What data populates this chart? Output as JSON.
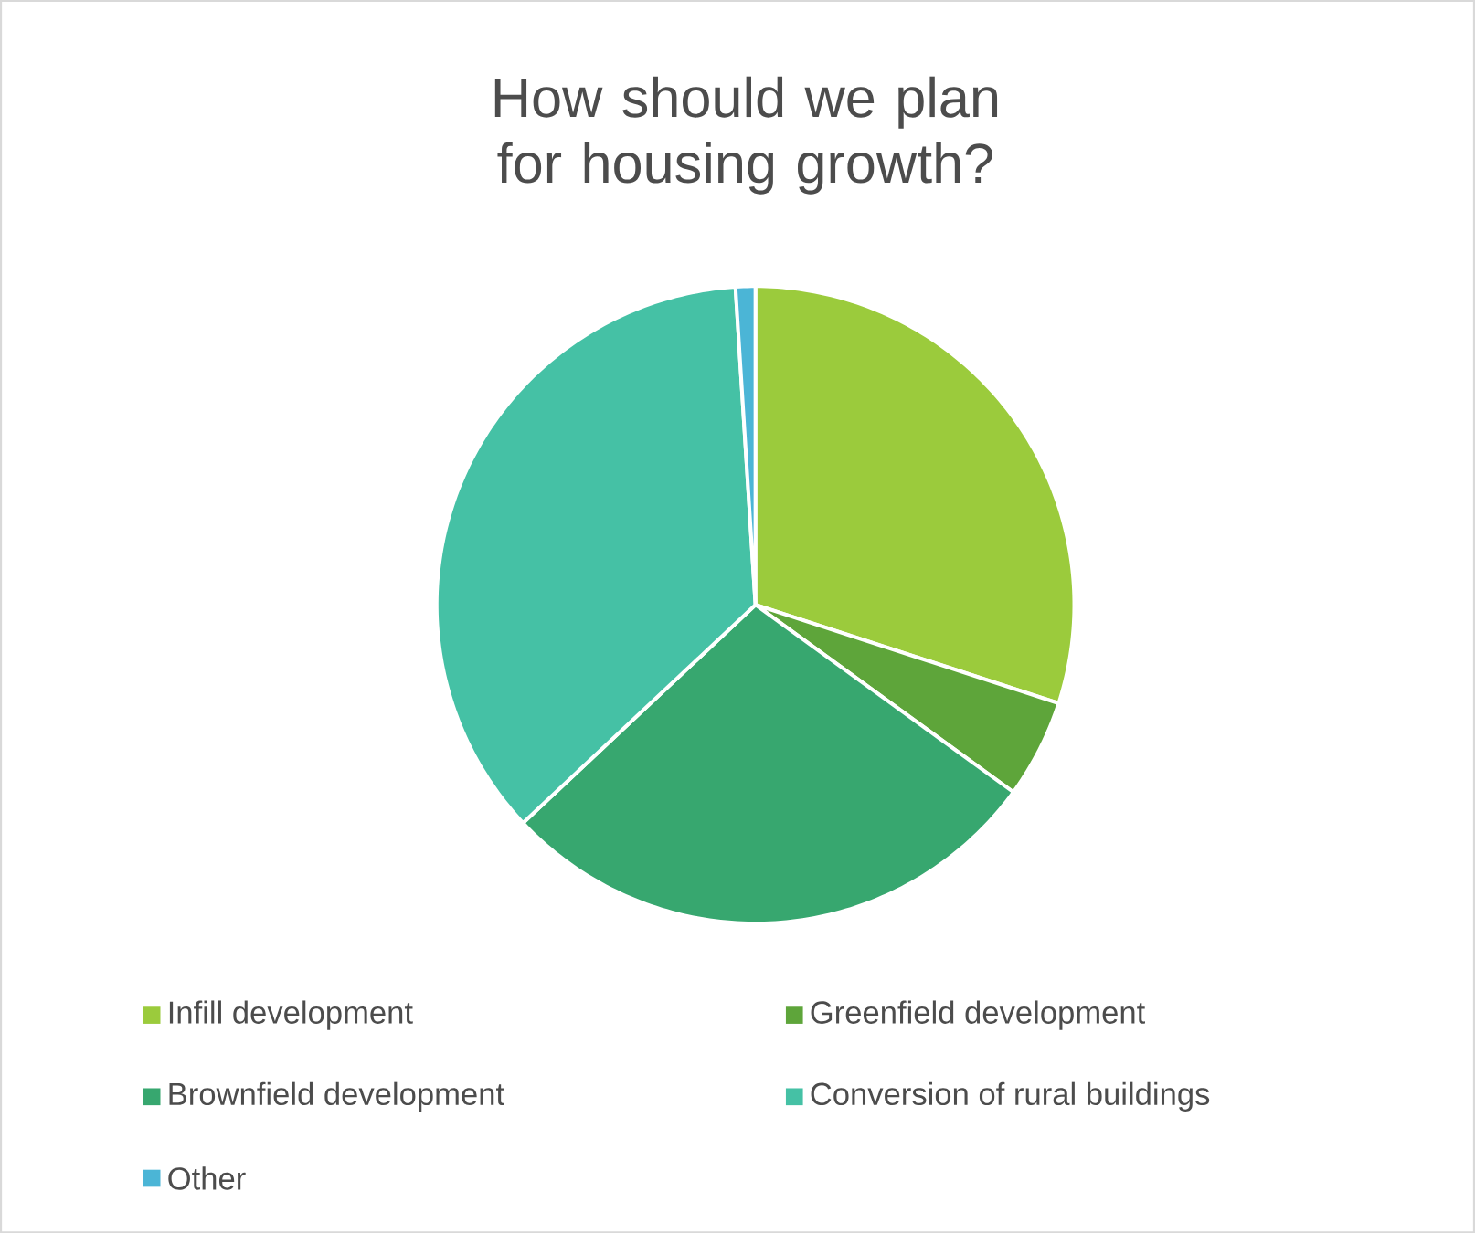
{
  "chart_data": {
    "type": "pie",
    "title": "How should we plan for housing growth?",
    "categories": [
      "Infill development",
      "Greenfield development",
      "Brownfield development",
      "Conversion of rural buildings",
      "Other"
    ],
    "values": [
      30,
      5,
      28,
      36,
      1
    ],
    "colors": [
      "#9bcb3c",
      "#5ea53a",
      "#37a76f",
      "#45c1a5",
      "#4bb5d6"
    ],
    "legend": "bottom"
  }
}
